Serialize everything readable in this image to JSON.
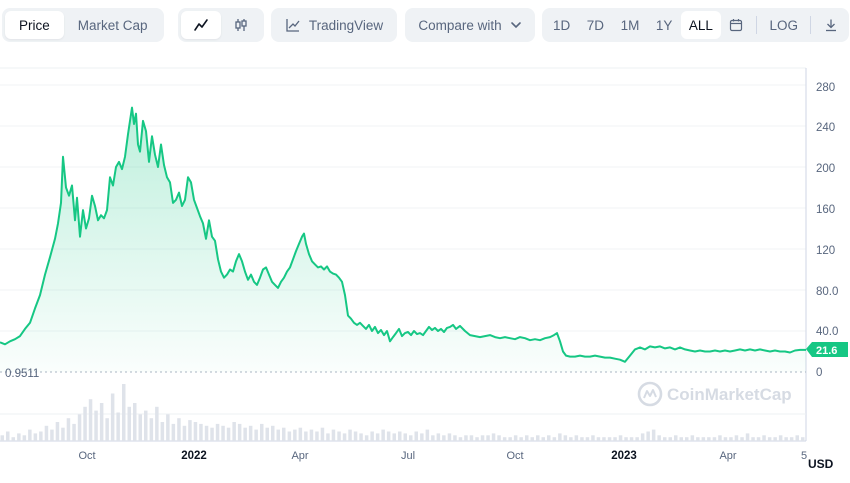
{
  "toolbar": {
    "tabs": [
      "Price",
      "Market Cap"
    ],
    "active_tab": "Price",
    "tradingview_label": "TradingView",
    "compare_label": "Compare with",
    "ranges": [
      "1D",
      "7D",
      "1M",
      "1Y",
      "ALL"
    ],
    "active_range": "ALL",
    "log_label": "LOG"
  },
  "brand": {
    "name": "CoinMarketCap",
    "accent": "#16c784",
    "line_color": "#16c784"
  },
  "chart_data": {
    "type": "area",
    "x_tick_labels": [
      "Oct",
      "2022",
      "Apr",
      "Jul",
      "Oct",
      "2023",
      "Apr",
      "5"
    ],
    "y_tick_labels": [
      "280",
      "240",
      "200",
      "160",
      "120",
      "80.0",
      "40.0",
      "0"
    ],
    "ylim": [
      0,
      290
    ],
    "min_label": "0.9511",
    "current_price_label": "21.6",
    "currency_label": "USD",
    "series": [
      {
        "values": [
          [
            0,
            29
          ],
          [
            5,
            27
          ],
          [
            10,
            30
          ],
          [
            15,
            32
          ],
          [
            20,
            35
          ],
          [
            25,
            42
          ],
          [
            30,
            48
          ],
          [
            35,
            62
          ],
          [
            40,
            75
          ],
          [
            45,
            95
          ],
          [
            50,
            112
          ],
          [
            55,
            130
          ],
          [
            58,
            145
          ],
          [
            61,
            165
          ],
          [
            63,
            210
          ],
          [
            66,
            180
          ],
          [
            69,
            172
          ],
          [
            72,
            182
          ],
          [
            75,
            148
          ],
          [
            77,
            170
          ],
          [
            80,
            132
          ],
          [
            83,
            158
          ],
          [
            86,
            140
          ],
          [
            89,
            150
          ],
          [
            92,
            172
          ],
          [
            95,
            162
          ],
          [
            98,
            148
          ],
          [
            101,
            153
          ],
          [
            104,
            150
          ],
          [
            107,
            158
          ],
          [
            110,
            190
          ],
          [
            113,
            182
          ],
          [
            116,
            200
          ],
          [
            119,
            205
          ],
          [
            122,
            198
          ],
          [
            125,
            210
          ],
          [
            128,
            232
          ],
          [
            130,
            245
          ],
          [
            132,
            258
          ],
          [
            134,
            242
          ],
          [
            136,
            252
          ],
          [
            138,
            222
          ],
          [
            140,
            215
          ],
          [
            143,
            245
          ],
          [
            146,
            235
          ],
          [
            149,
            205
          ],
          [
            152,
            230
          ],
          [
            155,
            212
          ],
          [
            158,
            200
          ],
          [
            161,
            222
          ],
          [
            164,
            202
          ],
          [
            167,
            190
          ],
          [
            170,
            185
          ],
          [
            173,
            165
          ],
          [
            176,
            168
          ],
          [
            179,
            175
          ],
          [
            182,
            162
          ],
          [
            185,
            168
          ],
          [
            188,
            190
          ],
          [
            191,
            185
          ],
          [
            194,
            168
          ],
          [
            197,
            160
          ],
          [
            200,
            152
          ],
          [
            203,
            145
          ],
          [
            206,
            130
          ],
          [
            209,
            148
          ],
          [
            212,
            132
          ],
          [
            215,
            128
          ],
          [
            218,
            110
          ],
          [
            221,
            98
          ],
          [
            224,
            92
          ],
          [
            227,
            95
          ],
          [
            230,
            100
          ],
          [
            233,
            98
          ],
          [
            236,
            108
          ],
          [
            239,
            115
          ],
          [
            242,
            108
          ],
          [
            245,
            98
          ],
          [
            248,
            90
          ],
          [
            251,
            95
          ],
          [
            254,
            88
          ],
          [
            257,
            85
          ],
          [
            260,
            92
          ],
          [
            263,
            100
          ],
          [
            266,
            102
          ],
          [
            269,
            95
          ],
          [
            272,
            88
          ],
          [
            275,
            85
          ],
          [
            278,
            82
          ],
          [
            281,
            88
          ],
          [
            284,
            92
          ],
          [
            287,
            98
          ],
          [
            290,
            102
          ],
          [
            293,
            110
          ],
          [
            296,
            118
          ],
          [
            299,
            125
          ],
          [
            302,
            132
          ],
          [
            304,
            135
          ],
          [
            306,
            125
          ],
          [
            309,
            115
          ],
          [
            312,
            108
          ],
          [
            315,
            105
          ],
          [
            318,
            102
          ],
          [
            321,
            103
          ],
          [
            324,
            100
          ],
          [
            327,
            103
          ],
          [
            330,
            98
          ],
          [
            333,
            96
          ],
          [
            336,
            95
          ],
          [
            339,
            92
          ],
          [
            342,
            88
          ],
          [
            345,
            75
          ],
          [
            348,
            55
          ],
          [
            351,
            52
          ],
          [
            354,
            48
          ],
          [
            357,
            46
          ],
          [
            360,
            48
          ],
          [
            363,
            45
          ],
          [
            366,
            42
          ],
          [
            369,
            46
          ],
          [
            372,
            40
          ],
          [
            375,
            44
          ],
          [
            378,
            38
          ],
          [
            381,
            41
          ],
          [
            384,
            36
          ],
          [
            387,
            40
          ],
          [
            390,
            30
          ],
          [
            393,
            34
          ],
          [
            396,
            38
          ],
          [
            399,
            42
          ],
          [
            402,
            35
          ],
          [
            405,
            38
          ],
          [
            408,
            39
          ],
          [
            411,
            36
          ],
          [
            414,
            40
          ],
          [
            417,
            37
          ],
          [
            420,
            38
          ],
          [
            423,
            36
          ],
          [
            426,
            40
          ],
          [
            429,
            44
          ],
          [
            432,
            41
          ],
          [
            435,
            43
          ],
          [
            438,
            40
          ],
          [
            441,
            42
          ],
          [
            444,
            39
          ],
          [
            447,
            43
          ],
          [
            450,
            44
          ],
          [
            453,
            46
          ],
          [
            456,
            42
          ],
          [
            460,
            45
          ],
          [
            465,
            40
          ],
          [
            470,
            36
          ],
          [
            475,
            35
          ],
          [
            480,
            34
          ],
          [
            485,
            35
          ],
          [
            490,
            36
          ],
          [
            495,
            34
          ],
          [
            500,
            33
          ],
          [
            505,
            34
          ],
          [
            510,
            33
          ],
          [
            515,
            32
          ],
          [
            520,
            34
          ],
          [
            525,
            33
          ],
          [
            530,
            31
          ],
          [
            535,
            32
          ],
          [
            540,
            31
          ],
          [
            545,
            33
          ],
          [
            550,
            34
          ],
          [
            554,
            36
          ],
          [
            557,
            38
          ],
          [
            560,
            30
          ],
          [
            563,
            20
          ],
          [
            566,
            16
          ],
          [
            570,
            15
          ],
          [
            575,
            15
          ],
          [
            580,
            16
          ],
          [
            585,
            15
          ],
          [
            590,
            15
          ],
          [
            595,
            16
          ],
          [
            600,
            15
          ],
          [
            605,
            14
          ],
          [
            610,
            14
          ],
          [
            615,
            13
          ],
          [
            620,
            12
          ],
          [
            625,
            10
          ],
          [
            630,
            16
          ],
          [
            635,
            22
          ],
          [
            640,
            24
          ],
          [
            645,
            22
          ],
          [
            650,
            25
          ],
          [
            655,
            24
          ],
          [
            660,
            25
          ],
          [
            665,
            23
          ],
          [
            670,
            24
          ],
          [
            675,
            22
          ],
          [
            680,
            24
          ],
          [
            685,
            22
          ],
          [
            690,
            21
          ],
          [
            695,
            20
          ],
          [
            700,
            21
          ],
          [
            705,
            20
          ],
          [
            710,
            20
          ],
          [
            715,
            21
          ],
          [
            720,
            20
          ],
          [
            725,
            21
          ],
          [
            730,
            20
          ],
          [
            735,
            21
          ],
          [
            740,
            22
          ],
          [
            745,
            21
          ],
          [
            750,
            22
          ],
          [
            755,
            21
          ],
          [
            760,
            22
          ],
          [
            765,
            21
          ],
          [
            770,
            20
          ],
          [
            775,
            21
          ],
          [
            780,
            20
          ],
          [
            785,
            20
          ],
          [
            790,
            19
          ],
          [
            795,
            21
          ],
          [
            800,
            21.6
          ],
          [
            806,
            21.6
          ]
        ]
      }
    ],
    "volume": [
      3,
      5,
      2,
      4,
      3,
      6,
      4,
      5,
      8,
      6,
      10,
      7,
      12,
      9,
      14,
      18,
      22,
      16,
      20,
      12,
      25,
      15,
      30,
      18,
      20,
      14,
      16,
      12,
      18,
      10,
      14,
      9,
      12,
      8,
      11,
      10,
      9,
      8,
      7,
      9,
      8,
      7,
      10,
      9,
      7,
      8,
      6,
      9,
      7,
      8,
      6,
      7,
      5,
      6,
      7,
      5,
      6,
      5,
      7,
      4,
      6,
      5,
      4,
      6,
      5,
      4,
      3,
      5,
      4,
      6,
      5,
      4,
      5,
      4,
      3,
      5,
      4,
      6,
      3,
      4,
      3,
      4,
      3,
      2,
      3,
      3,
      2,
      3,
      3,
      4,
      3,
      2,
      2,
      3,
      2,
      3,
      2,
      3,
      2,
      3,
      2,
      4,
      3,
      2,
      3,
      2,
      2,
      3,
      2,
      2,
      2,
      2,
      3,
      2,
      2,
      2,
      4,
      5,
      6,
      3,
      2,
      2,
      3,
      2,
      2,
      3,
      2,
      2,
      2,
      2,
      3,
      2,
      2,
      3,
      2,
      4,
      2,
      2,
      3,
      2,
      2,
      3,
      2,
      2,
      3,
      2
    ]
  }
}
